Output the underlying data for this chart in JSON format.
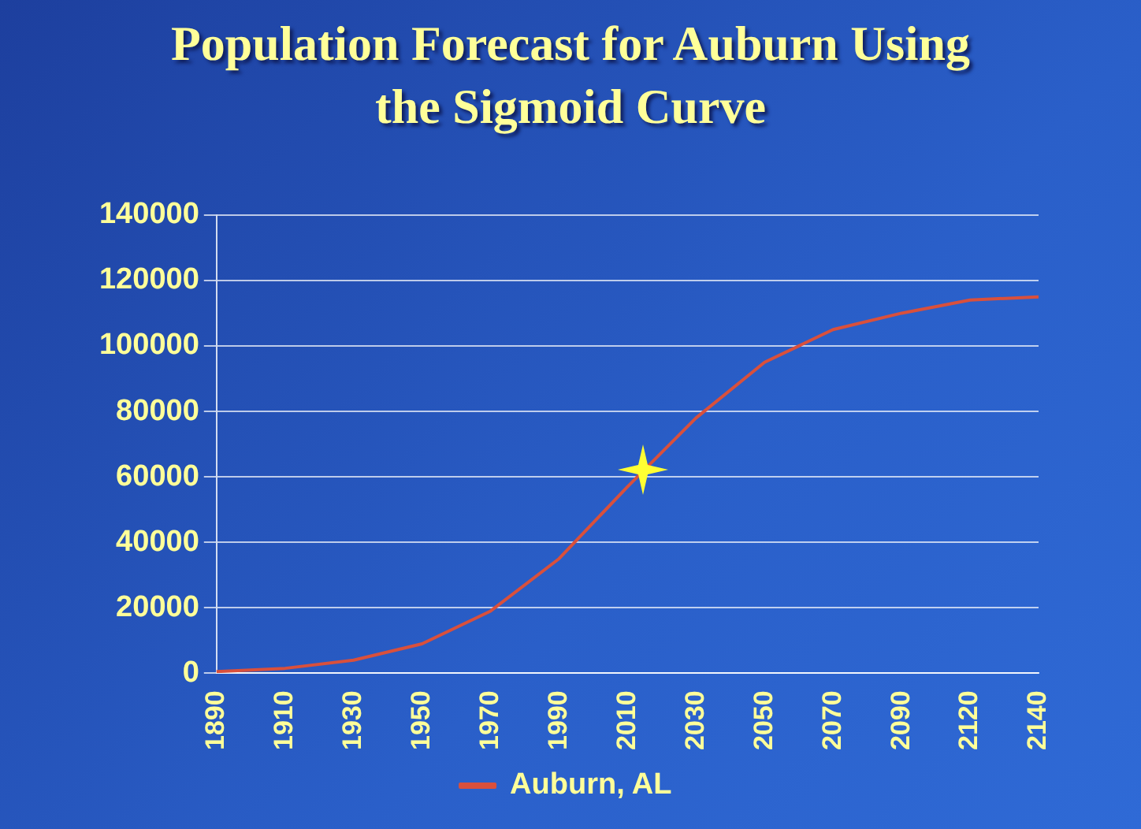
{
  "chart_data": {
    "type": "line",
    "title": "Population Forecast for Auburn Using the Sigmoid Curve",
    "categories": [
      "1890",
      "1910",
      "1930",
      "1950",
      "1970",
      "1990",
      "2010",
      "2030",
      "2050",
      "2070",
      "2090",
      "2120",
      "2140"
    ],
    "series": [
      {
        "name": "Auburn, AL",
        "color": "#d9503c",
        "values": [
          500,
          1500,
          4000,
          9000,
          19000,
          35000,
          57000,
          78000,
          95000,
          105000,
          110000,
          114000,
          115000
        ]
      }
    ],
    "ylim": [
      0,
      140000
    ],
    "yticks": [
      0,
      20000,
      40000,
      60000,
      80000,
      100000,
      120000,
      140000
    ],
    "grid": "y",
    "legend": "bottom",
    "marker": "none",
    "line_style": "solid"
  }
}
